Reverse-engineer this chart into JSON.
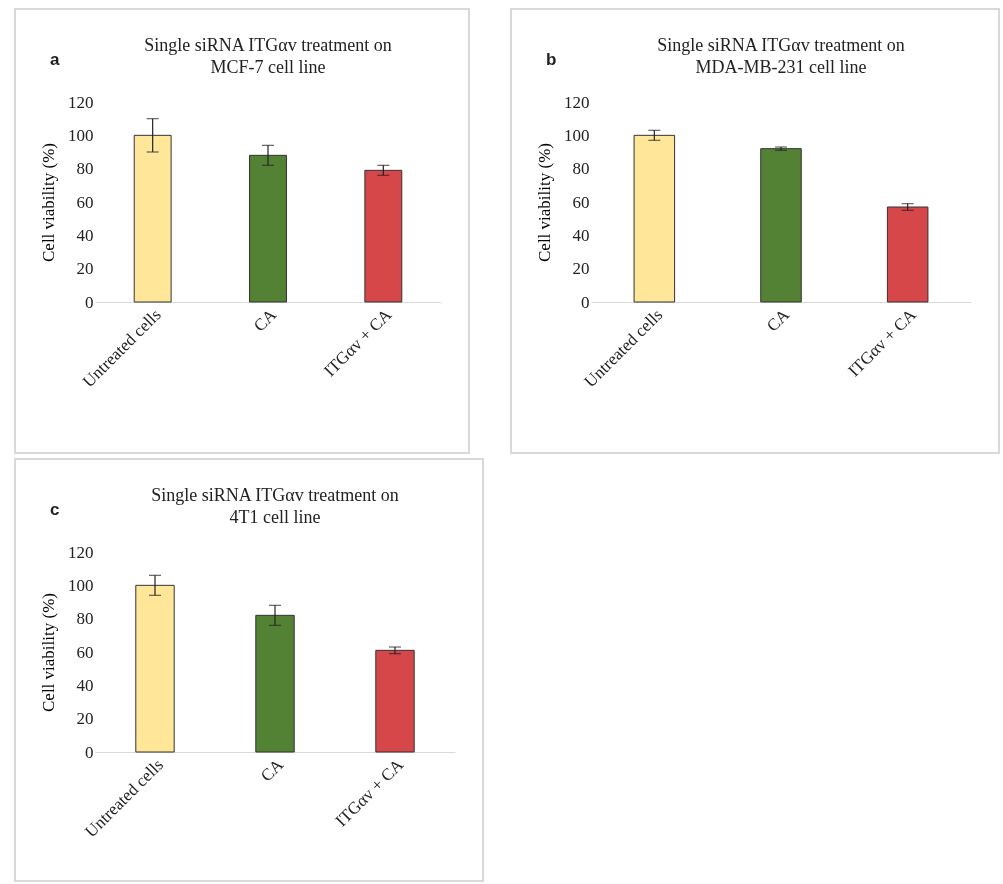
{
  "chart_data": [
    {
      "type": "bar",
      "title": "Single  siRNA ITGαv treatment on\nMCF-7 cell line",
      "ylabel": "Cell viability  (%)",
      "annotations": [
        "a"
      ],
      "categories": [
        "Untreated cells",
        "CA",
        "ITGαv + CA"
      ],
      "values": [
        100,
        88,
        79
      ],
      "errors": [
        10,
        6,
        3
      ],
      "colors": [
        "#ffe699",
        "#548235",
        "#d6474a"
      ],
      "ylim": [
        0,
        120
      ],
      "yticks": [
        0,
        20,
        40,
        60,
        80,
        100,
        120
      ]
    },
    {
      "type": "bar",
      "title": "Single  siRNA ITGαv treatment on\nMDA-MB-231  cell line",
      "ylabel": "Cell viability  (%)",
      "annotations": [
        "b"
      ],
      "categories": [
        "Untreated cells",
        "CA",
        "ITGαv + CA"
      ],
      "values": [
        100,
        92,
        57
      ],
      "errors": [
        3,
        1,
        2
      ],
      "colors": [
        "#ffe699",
        "#548235",
        "#d6474a"
      ],
      "ylim": [
        0,
        120
      ],
      "yticks": [
        0,
        20,
        40,
        60,
        80,
        100,
        120
      ]
    },
    {
      "type": "bar",
      "title": "Single  siRNA ITGαv treatment on\n4T1 cell line",
      "ylabel": "Cell viability  (%)",
      "annotations": [
        "c"
      ],
      "categories": [
        "Untreated cells",
        "CA",
        "ITGαv + CA"
      ],
      "values": [
        100,
        82,
        61
      ],
      "errors": [
        6,
        6,
        2
      ],
      "colors": [
        "#ffe699",
        "#548235",
        "#d6474a"
      ],
      "ylim": [
        0,
        120
      ],
      "yticks": [
        0,
        20,
        40,
        60,
        80,
        100,
        120
      ]
    }
  ]
}
